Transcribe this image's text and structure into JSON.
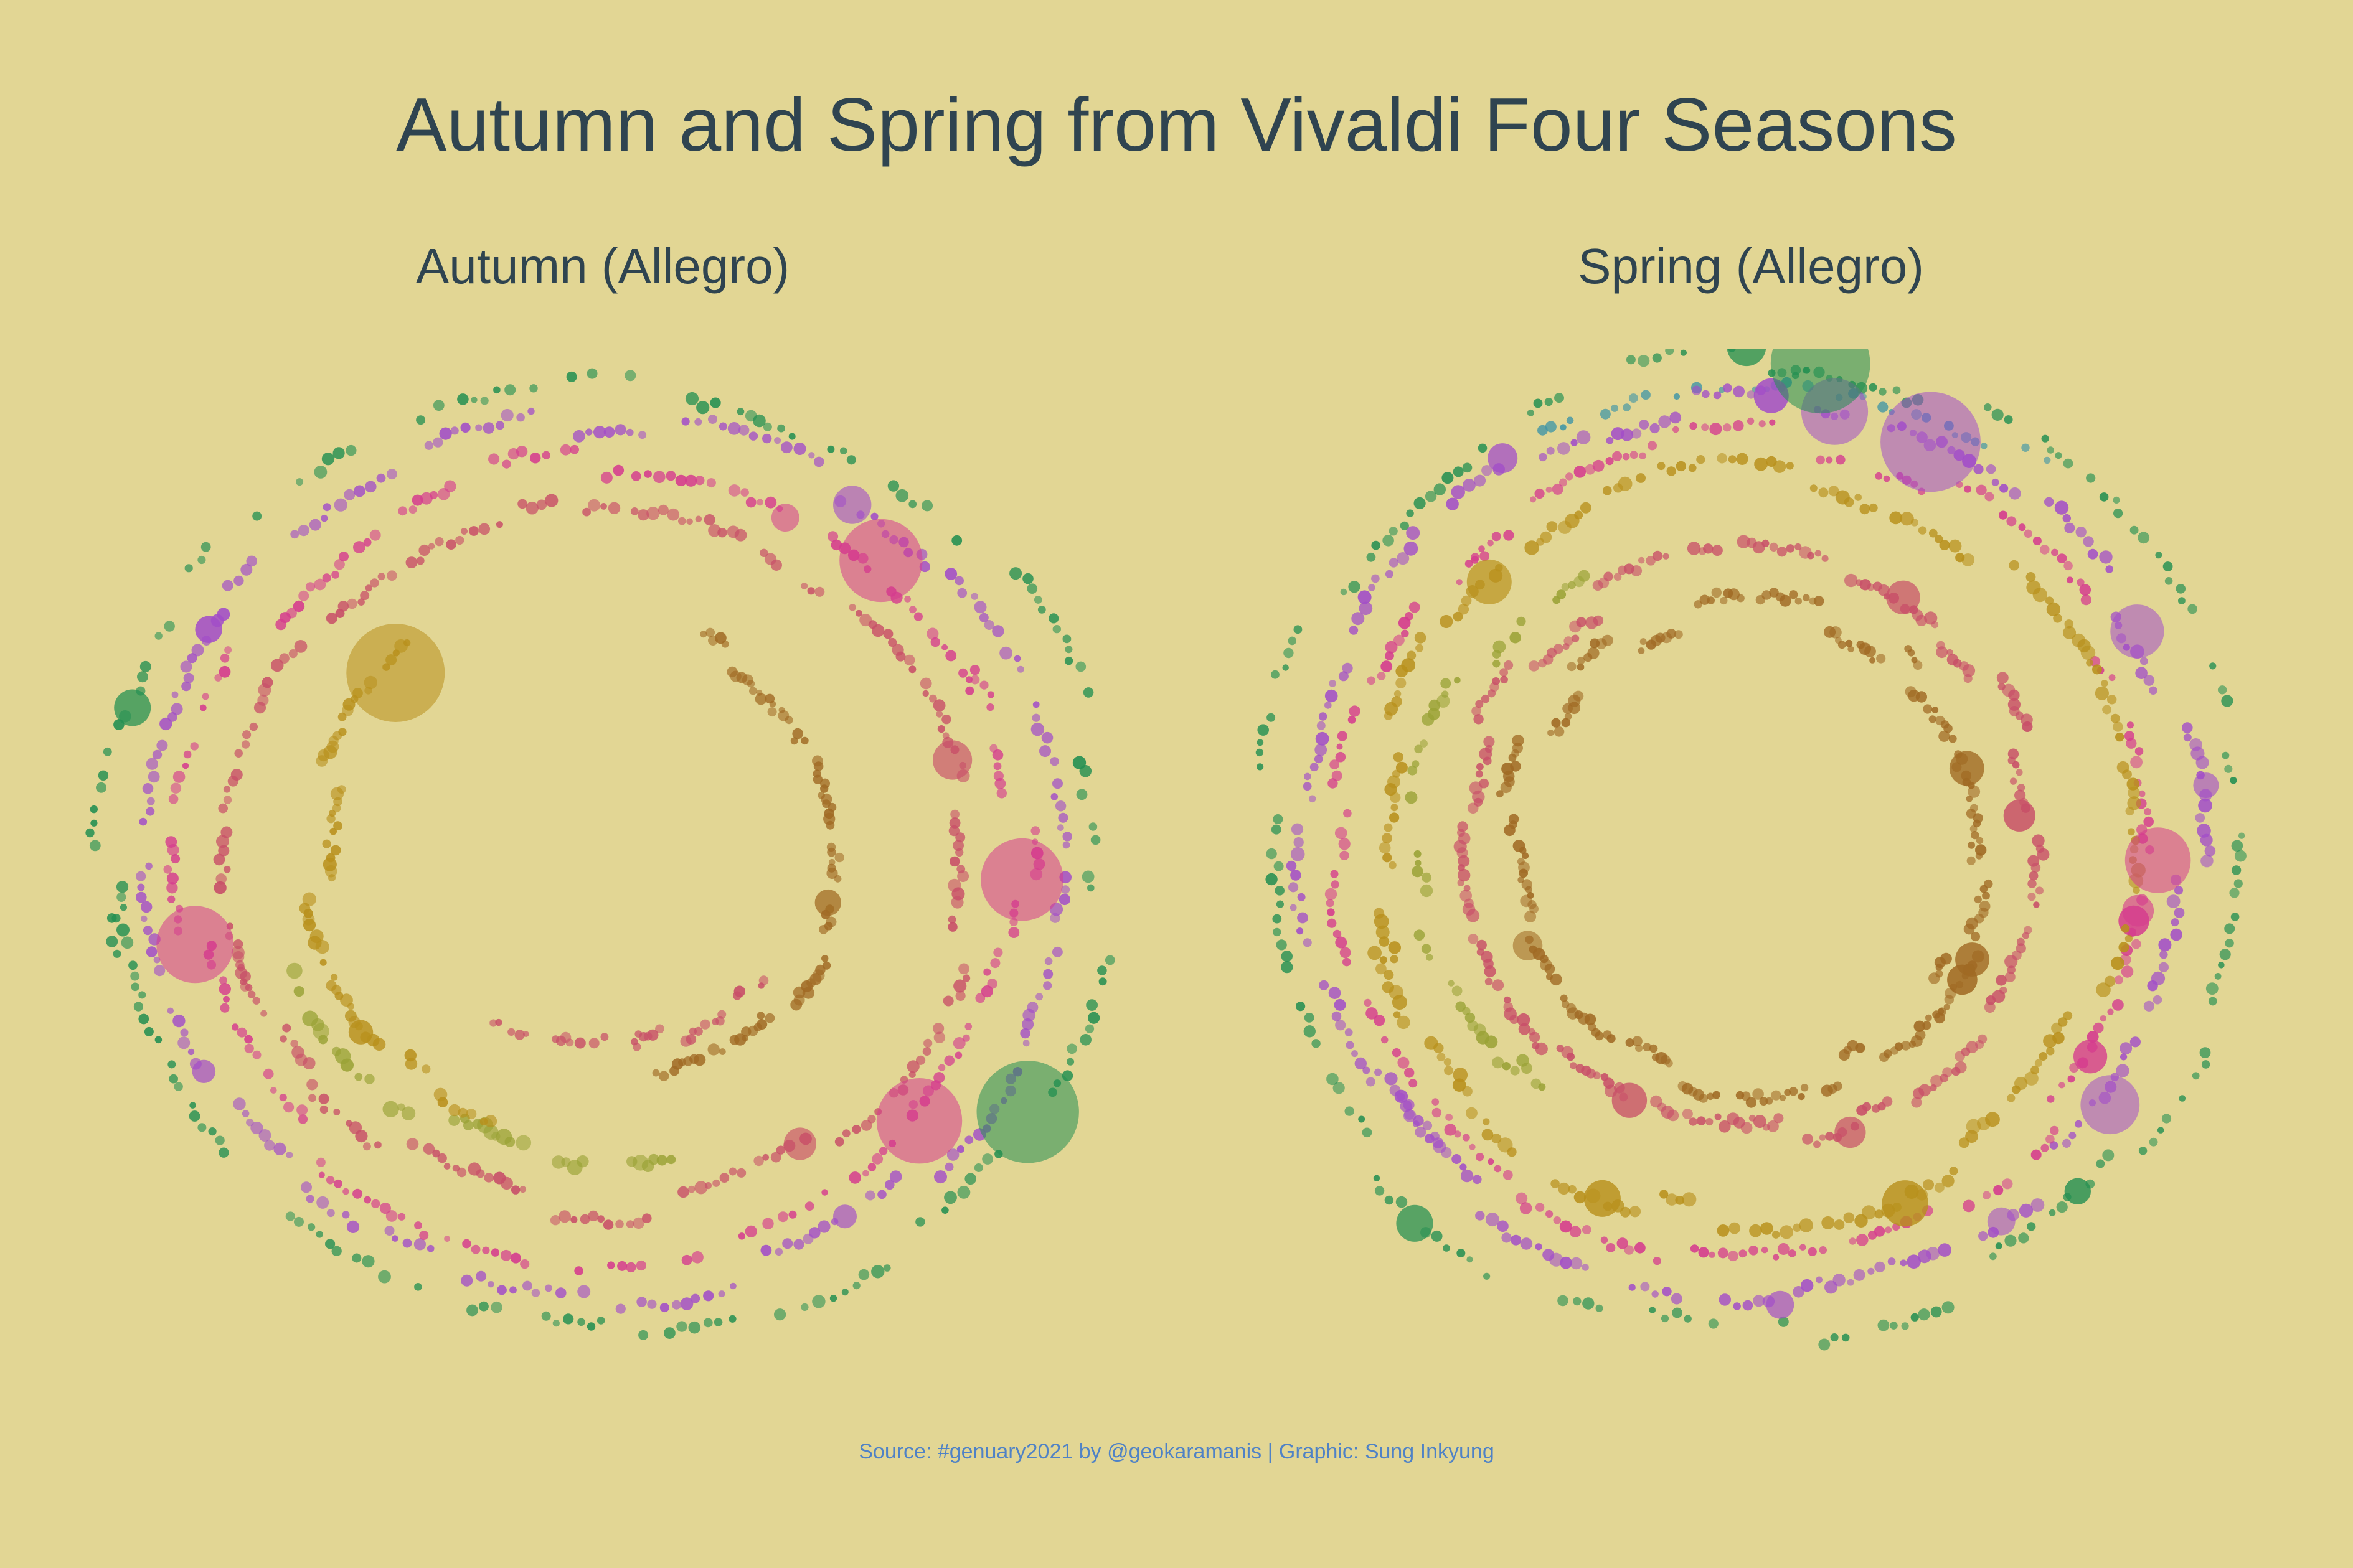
{
  "title": "Autumn and Spring from Vivaldi Four Seasons",
  "caption": "Source: #genuary2021 by @geokaramanis | Graphic: Sung Inkyung",
  "colors": {
    "background": "#e2d694",
    "title_text": "#2f4450",
    "caption_text": "#4f82c6",
    "instrument_rings": [
      "#a24ec8",
      "#d53c8e",
      "#b8901c",
      "#c84f68",
      "#9aa236",
      "#a06a24",
      "#259052",
      "#3e95a6"
    ]
  },
  "chart_data": [
    {
      "type": "scatter",
      "subtitle": "Autumn (Allegro)",
      "polar": true,
      "title": "",
      "xlabel": "",
      "ylabel": "",
      "grid": false,
      "legend": "none",
      "rings": [
        {
          "color": "#259052",
          "radius": 0.98,
          "density": 0.42,
          "size": 0.55,
          "arc": [
            0,
            360
          ]
        },
        {
          "color": "#a24ec8",
          "radius": 0.9,
          "density": 0.62,
          "size": 0.55,
          "arc": [
            0,
            360
          ]
        },
        {
          "color": "#d53c8e",
          "radius": 0.82,
          "density": 0.55,
          "size": 0.5,
          "arc": [
            0,
            360
          ]
        },
        {
          "color": "#c84f68",
          "radius": 0.72,
          "density": 0.6,
          "size": 0.55,
          "arc": [
            0,
            360
          ]
        },
        {
          "color": "#9aa236",
          "radius": 0.63,
          "density": 0.35,
          "size": 0.75,
          "arc": [
            160,
            250
          ]
        },
        {
          "color": "#b8901c",
          "radius": 0.56,
          "density": 0.55,
          "size": 0.6,
          "arc": [
            200,
            320
          ]
        },
        {
          "color": "#a06a24",
          "radius": 0.48,
          "density": 0.55,
          "size": 0.5,
          "arc": [
            20,
            170
          ]
        },
        {
          "color": "#c84f68",
          "radius": 0.4,
          "density": 0.35,
          "size": 0.45,
          "arc": [
            120,
            220
          ]
        }
      ]
    },
    {
      "type": "scatter",
      "subtitle": "Spring (Allegro)",
      "polar": true,
      "title": "",
      "xlabel": "",
      "ylabel": "",
      "grid": false,
      "legend": "none",
      "rings": [
        {
          "color": "#259052",
          "radius": 0.98,
          "density": 0.45,
          "size": 0.5,
          "arc": [
            0,
            360
          ]
        },
        {
          "color": "#3e95a6",
          "radius": 0.95,
          "density": 0.3,
          "size": 0.45,
          "arc": [
            330,
            40
          ]
        },
        {
          "color": "#a24ec8",
          "radius": 0.89,
          "density": 0.65,
          "size": 0.6,
          "arc": [
            0,
            360
          ]
        },
        {
          "color": "#d53c8e",
          "radius": 0.82,
          "density": 0.55,
          "size": 0.5,
          "arc": [
            0,
            360
          ]
        },
        {
          "color": "#b8901c",
          "radius": 0.75,
          "density": 0.6,
          "size": 0.65,
          "arc": [
            0,
            360
          ]
        },
        {
          "color": "#9aa236",
          "radius": 0.66,
          "density": 0.4,
          "size": 0.55,
          "arc": [
            220,
            330
          ]
        },
        {
          "color": "#c84f68",
          "radius": 0.58,
          "density": 0.7,
          "size": 0.55,
          "arc": [
            0,
            360
          ]
        },
        {
          "color": "#a06a24",
          "radius": 0.48,
          "density": 0.7,
          "size": 0.5,
          "arc": [
            0,
            360
          ]
        }
      ]
    }
  ]
}
